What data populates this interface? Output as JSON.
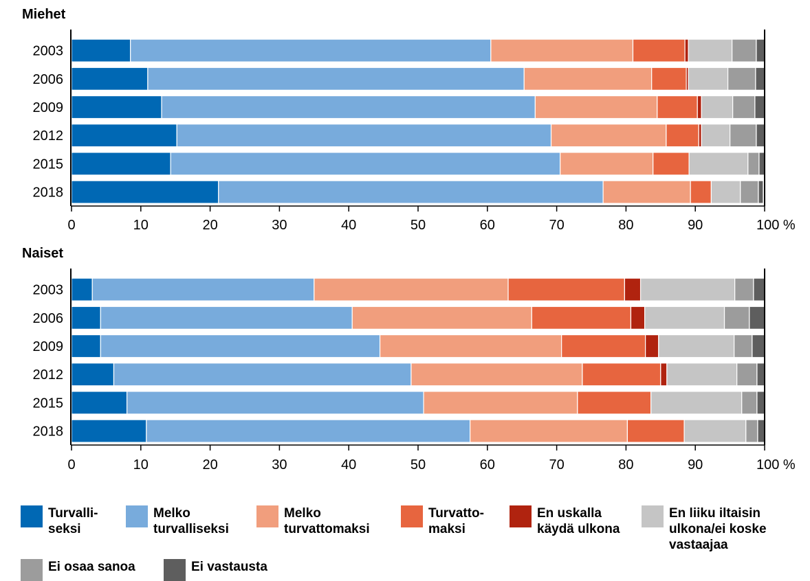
{
  "colors": {
    "turvalliseksi": "#0068B4",
    "melko_turvalliseksi": "#78ABDC",
    "melko_turvattomaksi": "#F19E7D",
    "turvattomaksi": "#E7653F",
    "en_uskalla": "#B0230F",
    "en_liiku": "#C5C5C5",
    "ei_osaa": "#9C9C9C",
    "ei_vastausta": "#5E5E5E"
  },
  "chart_data": [
    {
      "type": "bar",
      "orientation": "horizontal",
      "stacked": true,
      "title": "Miehet",
      "categories": [
        "2003",
        "2006",
        "2009",
        "2012",
        "2015",
        "2018"
      ],
      "xlim": [
        0,
        100
      ],
      "xticks": [
        "0",
        "10",
        "20",
        "30",
        "40",
        "50",
        "60",
        "70",
        "80",
        "90",
        "100 %"
      ],
      "series": [
        {
          "name": "Turvalliseksi",
          "color": "#0068B4",
          "values": [
            8.5,
            11.0,
            13.0,
            15.2,
            14.3,
            21.2
          ]
        },
        {
          "name": "Melko turvalliseksi",
          "color": "#78ABDC",
          "values": [
            52.0,
            54.3,
            53.9,
            54.0,
            56.2,
            55.5
          ]
        },
        {
          "name": "Melko turvattomaksi",
          "color": "#F19E7D",
          "values": [
            20.5,
            18.4,
            17.6,
            16.6,
            13.4,
            12.6
          ]
        },
        {
          "name": "Turvattomaksi",
          "color": "#E7653F",
          "values": [
            7.5,
            5.0,
            5.8,
            4.7,
            5.2,
            3.0
          ]
        },
        {
          "name": "En uskalla käydä ulkona",
          "color": "#B0230F",
          "values": [
            0.5,
            0.3,
            0.6,
            0.4,
            0.0,
            0.0
          ]
        },
        {
          "name": "En liiku iltaisin ulkona/ei koske vastaajaa",
          "color": "#C5C5C5",
          "values": [
            6.3,
            5.7,
            4.5,
            4.1,
            8.5,
            4.2
          ]
        },
        {
          "name": "Ei osaa sanoa",
          "color": "#9C9C9C",
          "values": [
            3.5,
            4.0,
            3.2,
            3.8,
            1.6,
            2.6
          ]
        },
        {
          "name": "Ei vastausta",
          "color": "#5E5E5E",
          "values": [
            1.2,
            1.3,
            1.4,
            1.2,
            0.8,
            0.7
          ]
        }
      ]
    },
    {
      "type": "bar",
      "orientation": "horizontal",
      "stacked": true,
      "title": "Naiset",
      "categories": [
        "2003",
        "2006",
        "2009",
        "2012",
        "2015",
        "2018"
      ],
      "xlim": [
        0,
        100
      ],
      "xticks": [
        "0",
        "10",
        "20",
        "30",
        "40",
        "50",
        "60",
        "70",
        "80",
        "90",
        "100 %"
      ],
      "series": [
        {
          "name": "Turvalliseksi",
          "color": "#0068B4",
          "values": [
            3.0,
            4.2,
            4.2,
            6.1,
            8.0,
            10.8
          ]
        },
        {
          "name": "Melko turvalliseksi",
          "color": "#78ABDC",
          "values": [
            32.0,
            36.3,
            40.3,
            42.9,
            42.8,
            46.7
          ]
        },
        {
          "name": "Melko turvattomaksi",
          "color": "#F19E7D",
          "values": [
            28.0,
            25.9,
            26.2,
            24.7,
            22.2,
            22.7
          ]
        },
        {
          "name": "Turvattomaksi",
          "color": "#E7653F",
          "values": [
            16.8,
            14.3,
            12.1,
            11.3,
            10.6,
            8.2
          ]
        },
        {
          "name": "En uskalla käydä ulkona",
          "color": "#B0230F",
          "values": [
            2.3,
            2.0,
            1.9,
            0.9,
            0.0,
            0.0
          ]
        },
        {
          "name": "En liiku iltaisin ulkona/ei koske vastaajaa",
          "color": "#C5C5C5",
          "values": [
            13.6,
            11.5,
            10.9,
            10.1,
            13.1,
            8.9
          ]
        },
        {
          "name": "Ei osaa sanoa",
          "color": "#9C9C9C",
          "values": [
            2.7,
            3.6,
            2.6,
            2.9,
            2.2,
            1.7
          ]
        },
        {
          "name": "Ei vastausta",
          "color": "#5E5E5E",
          "values": [
            1.6,
            2.2,
            1.8,
            1.1,
            1.1,
            1.0
          ]
        }
      ]
    }
  ],
  "legend": [
    {
      "label": "Turvalli-\nseksi",
      "color_key": "turvalliseksi"
    },
    {
      "label": "Melko\nturvalliseksi",
      "color_key": "melko_turvalliseksi"
    },
    {
      "label": "Melko\nturvattomaksi",
      "color_key": "melko_turvattomaksi"
    },
    {
      "label": "Turvatto-\nmaksi",
      "color_key": "turvattomaksi"
    },
    {
      "label": "En uskalla\nkäydä ulkona",
      "color_key": "en_uskalla"
    },
    {
      "label": "En liiku iltaisin\nulkona/ei koske\nvastaajaa",
      "color_key": "en_liiku"
    },
    {
      "label": "Ei osaa sanoa",
      "color_key": "ei_osaa"
    },
    {
      "label": "Ei vastausta",
      "color_key": "ei_vastausta"
    }
  ]
}
